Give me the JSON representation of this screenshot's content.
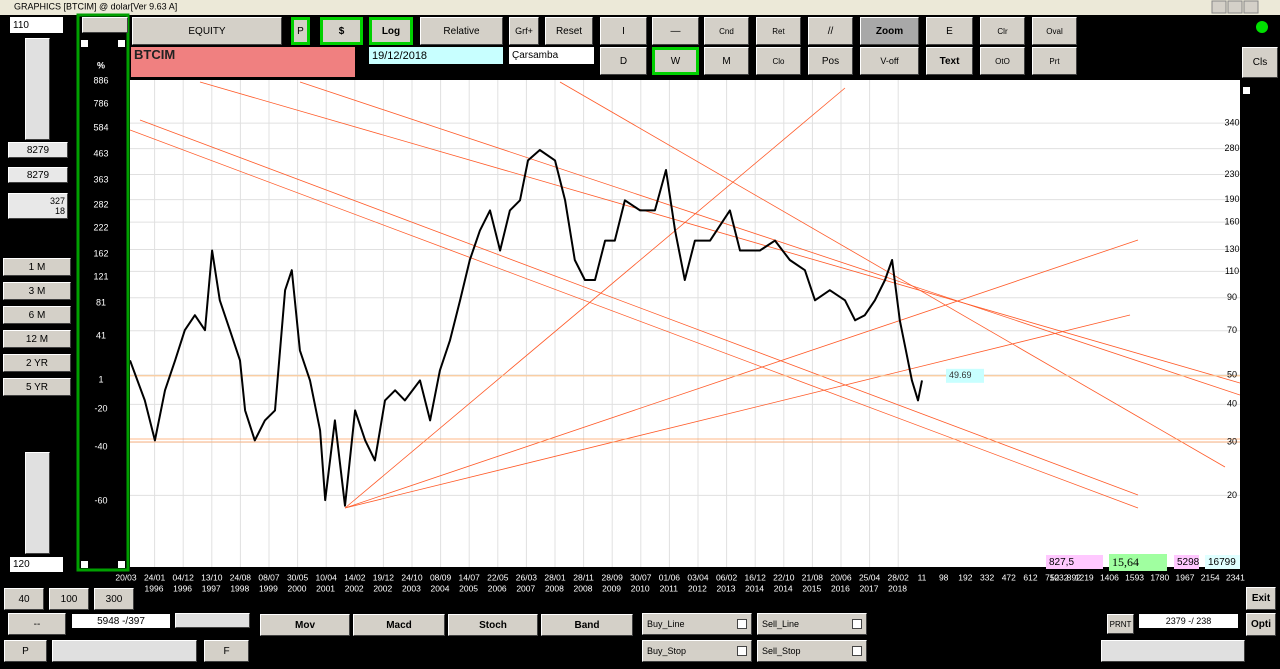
{
  "window_title": "GRAPHICS  [BTCIM] @ dolar[Ver 9.63 A]",
  "toolbar": {
    "row1": [
      "EQUITY",
      "P",
      "$",
      "Log",
      "Relative",
      "Grf+",
      "Reset",
      "I",
      "—",
      "Cnd",
      "Ret",
      "//",
      "Zoom",
      "E",
      "Clr",
      "Oval"
    ],
    "row2": [
      "D",
      "W",
      "M",
      "Clo",
      "Pos",
      "V-off",
      "Text",
      "OtO",
      "Prt"
    ],
    "close": "Cls"
  },
  "symbol": "BTCIM",
  "date": "19/12/2018",
  "weekday": "Çarsamba",
  "left_panel": {
    "top_value": 110,
    "value_1": 8279,
    "value_2": 8279,
    "value_3": 327,
    "value_4": 18,
    "periods": [
      "1 M",
      "3 M",
      "6 M",
      "12 M",
      "2 YR",
      "5 YR"
    ],
    "bottom_value": 120
  },
  "chart_data": {
    "type": "line",
    "x": [
      1995.34,
      1995.78,
      1996.08,
      1996.38,
      1996.68,
      1996.97,
      1997.27,
      1997.57,
      1997.78,
      1998.01,
      1998.31,
      1998.61,
      1998.76,
      1999.05,
      1999.35,
      1999.65,
      1999.95,
      2000.15,
      2000.39,
      2000.69,
      2000.99,
      2001.14,
      2001.43,
      2001.73,
      2002.03,
      2002.33,
      2002.62,
      2002.92,
      2003.22,
      2003.51,
      2003.96,
      2004.26,
      2004.55,
      2004.85,
      2005.15,
      2005.44,
      2005.74,
      2006.04,
      2006.34,
      2006.63,
      2006.93,
      2007.17,
      2007.52,
      2007.97,
      2008.27,
      2008.56,
      2008.86,
      2009.16,
      2009.46,
      2009.75,
      2010.05,
      2010.5,
      2010.94,
      2011.27,
      2011.54,
      2011.83,
      2012.13,
      2012.58,
      2013.17,
      2013.47,
      2014.06,
      2014.51,
      2014.95,
      2015.4,
      2015.7,
      2016.14,
      2016.59,
      2016.89,
      2017.18,
      2017.48,
      2017.78,
      2017.99,
      2018.22,
      2018.4,
      2018.58,
      2018.76,
      2018.88
    ],
    "series": [
      {
        "color": "#000000",
        "values": [
          55.9,
          41.2,
          30.4,
          44.5,
          55.9,
          70.3,
          78.8,
          70.3,
          129,
          88.3,
          70.3,
          55.9,
          38.2,
          30.4,
          35.4,
          38.2,
          95.3,
          111,
          60.3,
          48.0,
          32.8,
          19.3,
          35.4,
          18.5,
          38.2,
          30.4,
          26.1,
          41.2,
          44.5,
          41.2,
          48.0,
          35.4,
          51.8,
          65.1,
          88.3,
          120,
          150,
          175,
          129,
          175,
          189,
          256,
          277,
          256,
          189,
          120,
          103,
          103,
          139,
          139,
          189,
          175,
          175,
          238,
          150,
          103,
          139,
          139,
          175,
          129,
          129,
          139,
          120,
          111,
          88.3,
          95.3,
          88.3,
          75.8,
          78.8,
          88.3,
          103,
          120,
          75.8,
          60.3,
          48.0,
          41.2,
          48.0
        ]
      }
    ],
    "xlim": [
      1995.34,
      2028.33
    ],
    "ylim": [
      11.6,
      472
    ],
    "log_scale": true,
    "grid": true,
    "yticks": [
      340,
      280,
      230,
      190,
      160,
      130,
      110,
      90,
      70,
      50,
      40,
      30,
      20
    ],
    "left_axis_title": "%",
    "left_axis_labels": [
      886,
      786,
      584,
      463,
      363,
      282,
      222,
      162,
      121,
      81,
      41,
      1,
      -20,
      -40,
      -60
    ],
    "x_dates": [
      "20/03",
      "24/01",
      "04/12",
      "13/10",
      "24/08",
      "08/07",
      "30/05",
      "10/04",
      "14/02",
      "19/12",
      "24/10",
      "08/09",
      "14/07",
      "22/05",
      "26/03",
      "28/01",
      "28/11",
      "28/09",
      "30/07",
      "01/06",
      "03/04",
      "06/02",
      "16/12",
      "22/10",
      "21/08",
      "20/06",
      "25/04",
      "28/02"
    ],
    "x_years": [
      "1996",
      "1996",
      "1997",
      "1998",
      "1999",
      "2000",
      "2001",
      "2002",
      "2002",
      "2003",
      "2004",
      "2005",
      "2006",
      "2007",
      "2008",
      "2008",
      "2009",
      "2010",
      "2011",
      "2012",
      "2013",
      "2014",
      "2014",
      "2015",
      "2016",
      "2017",
      "2018"
    ],
    "x_numbers": [
      11,
      98,
      192,
      332,
      472,
      612,
      752,
      892,
      1032,
      1219,
      1406,
      1593,
      1780,
      1967,
      2154,
      2341
    ],
    "price_label": 49.69
  },
  "status": {
    "value_1": "827,5",
    "value_2": "15,64",
    "value_3": 5298,
    "value_4": 16799
  },
  "bottom": {
    "zoom": [
      40,
      100,
      300
    ],
    "dash": "--",
    "range": "5948 -/397",
    "prev": "P",
    "next": "F",
    "indicators": [
      "Mov",
      "Macd",
      "Stoch",
      "Band"
    ],
    "checks": [
      "Buy_Line",
      "Sell_Line",
      "Buy_Stop",
      "Sell_Stop"
    ],
    "print": "PRNT",
    "counter": "2379 -/ 238",
    "exit": "Exit",
    "opti": "Opti"
  }
}
